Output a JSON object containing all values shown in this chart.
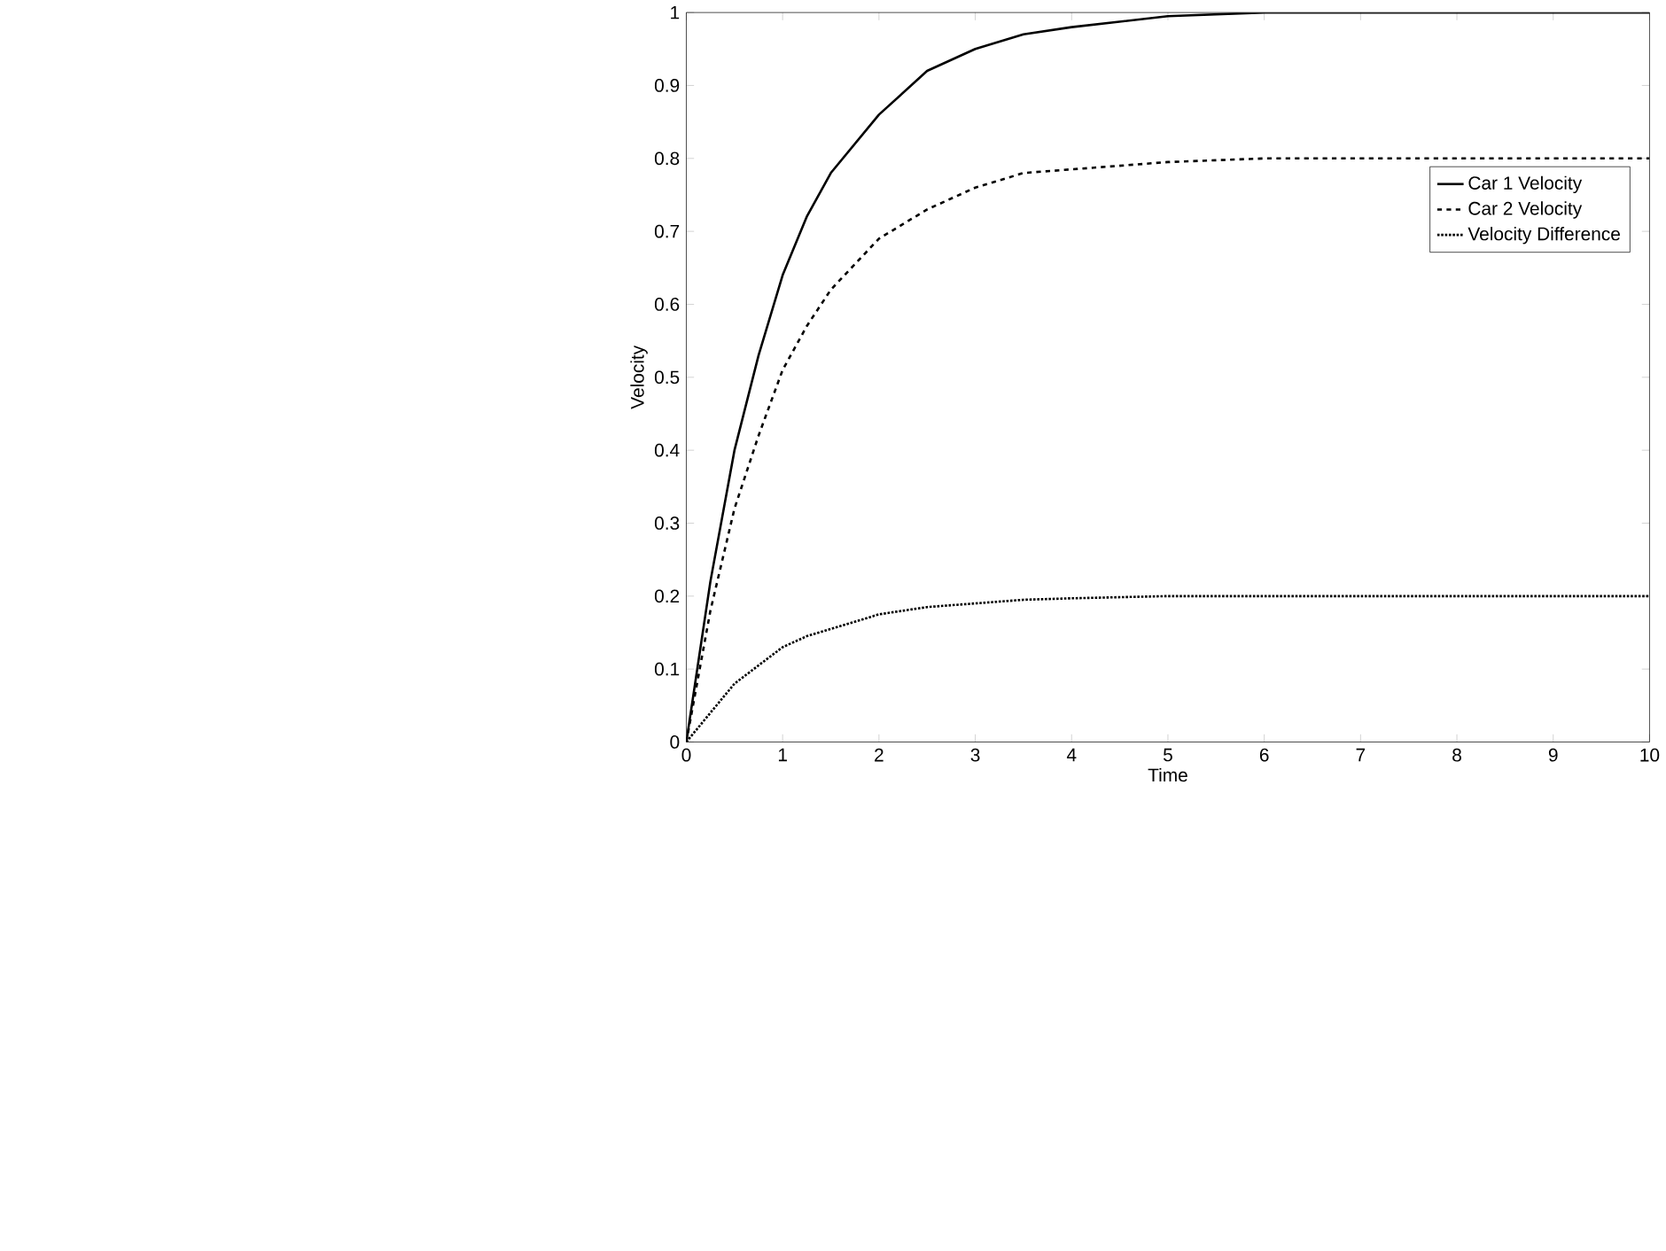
{
  "chart_data": {
    "type": "line",
    "xlabel": "Time",
    "ylabel": "Velocity",
    "x": [
      0,
      0.25,
      0.5,
      0.75,
      1,
      1.25,
      1.5,
      2,
      2.5,
      3,
      3.5,
      4,
      5,
      6,
      7,
      8,
      9,
      10
    ],
    "series": [
      {
        "name": "Car 1 Velocity",
        "color": "#000000",
        "line_style": "solid",
        "values": [
          0,
          0.22,
          0.4,
          0.53,
          0.64,
          0.72,
          0.78,
          0.86,
          0.92,
          0.95,
          0.97,
          0.98,
          0.995,
          1,
          1,
          1,
          1,
          1
        ]
      },
      {
        "name": "Car 2 Velocity",
        "color": "#000000",
        "line_style": "dashed",
        "values": [
          0,
          0.18,
          0.32,
          0.42,
          0.51,
          0.57,
          0.62,
          0.69,
          0.73,
          0.76,
          0.78,
          0.785,
          0.795,
          0.8,
          0.8,
          0.8,
          0.8,
          0.8
        ]
      },
      {
        "name": "Velocity Difference",
        "color": "#000000",
        "line_style": "dotted",
        "values": [
          0,
          0.04,
          0.08,
          0.105,
          0.13,
          0.145,
          0.155,
          0.175,
          0.185,
          0.19,
          0.195,
          0.197,
          0.2,
          0.2,
          0.2,
          0.2,
          0.2,
          0.2
        ]
      }
    ],
    "xlim": [
      0,
      10
    ],
    "ylim": [
      0,
      1
    ],
    "xticks": [
      0,
      1,
      2,
      3,
      4,
      5,
      6,
      7,
      8,
      9,
      10
    ],
    "yticks": [
      0,
      0.1,
      0.2,
      0.3,
      0.4,
      0.5,
      0.6,
      0.7,
      0.8,
      0.9,
      1
    ],
    "grid": false,
    "legend": "right",
    "marker": "none"
  }
}
